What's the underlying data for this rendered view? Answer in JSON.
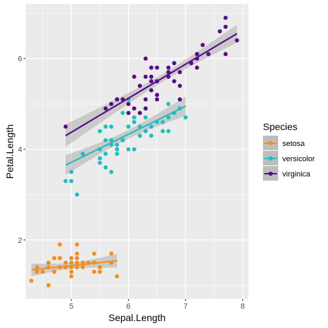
{
  "chart_data": {
    "type": "scatter",
    "xlabel": "Sepal.Length",
    "ylabel": "Petal.Length",
    "xlim": [
      4.2,
      8.1
    ],
    "ylim": [
      0.7,
      7.2
    ],
    "xticks": [
      5,
      6,
      7,
      8
    ],
    "yticks": [
      2,
      4,
      6
    ],
    "grid": true,
    "legend_title": "Species",
    "legend_position": "right",
    "series": [
      {
        "name": "setosa",
        "color": "#f28e1c",
        "points": [
          [
            4.3,
            1.1
          ],
          [
            4.4,
            1.3
          ],
          [
            4.4,
            1.4
          ],
          [
            4.5,
            1.3
          ],
          [
            4.6,
            1.0
          ],
          [
            4.6,
            1.4
          ],
          [
            4.6,
            1.5
          ],
          [
            4.7,
            1.3
          ],
          [
            4.7,
            1.6
          ],
          [
            4.8,
            1.4
          ],
          [
            4.8,
            1.6
          ],
          [
            4.8,
            1.9
          ],
          [
            4.9,
            1.4
          ],
          [
            4.9,
            1.5
          ],
          [
            5.0,
            1.2
          ],
          [
            5.0,
            1.4
          ],
          [
            5.0,
            1.5
          ],
          [
            5.0,
            1.6
          ],
          [
            5.0,
            1.3
          ],
          [
            5.1,
            1.4
          ],
          [
            5.1,
            1.5
          ],
          [
            5.1,
            1.7
          ],
          [
            5.1,
            1.9
          ],
          [
            5.1,
            1.6
          ],
          [
            5.2,
            1.5
          ],
          [
            5.2,
            1.4
          ],
          [
            5.3,
            1.5
          ],
          [
            5.4,
            1.3
          ],
          [
            5.4,
            1.5
          ],
          [
            5.4,
            1.7
          ],
          [
            5.5,
            1.3
          ],
          [
            5.5,
            1.4
          ],
          [
            5.7,
            1.5
          ],
          [
            5.7,
            1.7
          ],
          [
            5.8,
            1.2
          ]
        ],
        "fit": {
          "x": [
            4.3,
            5.8
          ],
          "y": [
            1.34,
            1.54
          ]
        }
      },
      {
        "name": "versicolor",
        "color": "#1fbfbf",
        "points": [
          [
            4.9,
            3.3
          ],
          [
            5.0,
            3.3
          ],
          [
            5.0,
            3.5
          ],
          [
            5.1,
            3.0
          ],
          [
            5.2,
            3.9
          ],
          [
            5.5,
            3.7
          ],
          [
            5.5,
            3.8
          ],
          [
            5.5,
            4.0
          ],
          [
            5.5,
            4.4
          ],
          [
            5.6,
            3.9
          ],
          [
            5.6,
            3.6
          ],
          [
            5.6,
            4.2
          ],
          [
            5.6,
            4.5
          ],
          [
            5.7,
            3.5
          ],
          [
            5.7,
            4.1
          ],
          [
            5.7,
            4.2
          ],
          [
            5.7,
            4.5
          ],
          [
            5.8,
            3.9
          ],
          [
            5.8,
            4.0
          ],
          [
            5.8,
            4.1
          ],
          [
            5.9,
            4.2
          ],
          [
            5.9,
            4.8
          ],
          [
            6.0,
            4.0
          ],
          [
            6.0,
            4.5
          ],
          [
            6.0,
            5.1
          ],
          [
            6.0,
            4.5
          ],
          [
            6.1,
            4.0
          ],
          [
            6.1,
            4.6
          ],
          [
            6.1,
            4.7
          ],
          [
            6.2,
            4.3
          ],
          [
            6.2,
            4.5
          ],
          [
            6.3,
            4.4
          ],
          [
            6.3,
            4.7
          ],
          [
            6.3,
            4.9
          ],
          [
            6.4,
            4.3
          ],
          [
            6.4,
            4.5
          ],
          [
            6.5,
            4.6
          ],
          [
            6.6,
            4.4
          ],
          [
            6.6,
            4.6
          ],
          [
            6.7,
            4.4
          ],
          [
            6.7,
            4.7
          ],
          [
            6.7,
            5.0
          ],
          [
            6.8,
            4.8
          ],
          [
            6.9,
            4.9
          ],
          [
            7.0,
            4.7
          ]
        ],
        "fit": {
          "x": [
            4.9,
            7.0
          ],
          "y": [
            3.65,
            4.95
          ]
        }
      },
      {
        "name": "virginica",
        "color": "#560d87",
        "points": [
          [
            4.9,
            4.5
          ],
          [
            5.6,
            4.9
          ],
          [
            5.7,
            5.0
          ],
          [
            5.8,
            5.1
          ],
          [
            5.8,
            5.1
          ],
          [
            5.9,
            5.1
          ],
          [
            6.0,
            5.0
          ],
          [
            6.0,
            4.8
          ],
          [
            6.1,
            5.6
          ],
          [
            6.1,
            4.9
          ],
          [
            6.2,
            5.4
          ],
          [
            6.2,
            4.8
          ],
          [
            6.3,
            6.0
          ],
          [
            6.3,
            5.1
          ],
          [
            6.3,
            5.6
          ],
          [
            6.3,
            4.9
          ],
          [
            6.4,
            5.6
          ],
          [
            6.4,
            5.3
          ],
          [
            6.4,
            5.5
          ],
          [
            6.4,
            5.8
          ],
          [
            6.5,
            5.8
          ],
          [
            6.5,
            5.5
          ],
          [
            6.5,
            5.1
          ],
          [
            6.5,
            5.2
          ],
          [
            6.7,
            5.8
          ],
          [
            6.7,
            5.7
          ],
          [
            6.7,
            5.6
          ],
          [
            6.8,
            5.9
          ],
          [
            6.8,
            5.5
          ],
          [
            6.9,
            5.7
          ],
          [
            6.9,
            5.1
          ],
          [
            6.9,
            5.4
          ],
          [
            7.1,
            5.9
          ],
          [
            7.2,
            6.1
          ],
          [
            7.2,
            6.0
          ],
          [
            7.2,
            5.8
          ],
          [
            7.3,
            6.3
          ],
          [
            7.4,
            6.1
          ],
          [
            7.6,
            6.6
          ],
          [
            7.7,
            6.7
          ],
          [
            7.7,
            6.9
          ],
          [
            7.7,
            6.1
          ],
          [
            7.9,
            6.4
          ]
        ],
        "fit": {
          "x": [
            4.9,
            7.9
          ],
          "y": [
            4.3,
            6.55
          ]
        }
      }
    ]
  }
}
